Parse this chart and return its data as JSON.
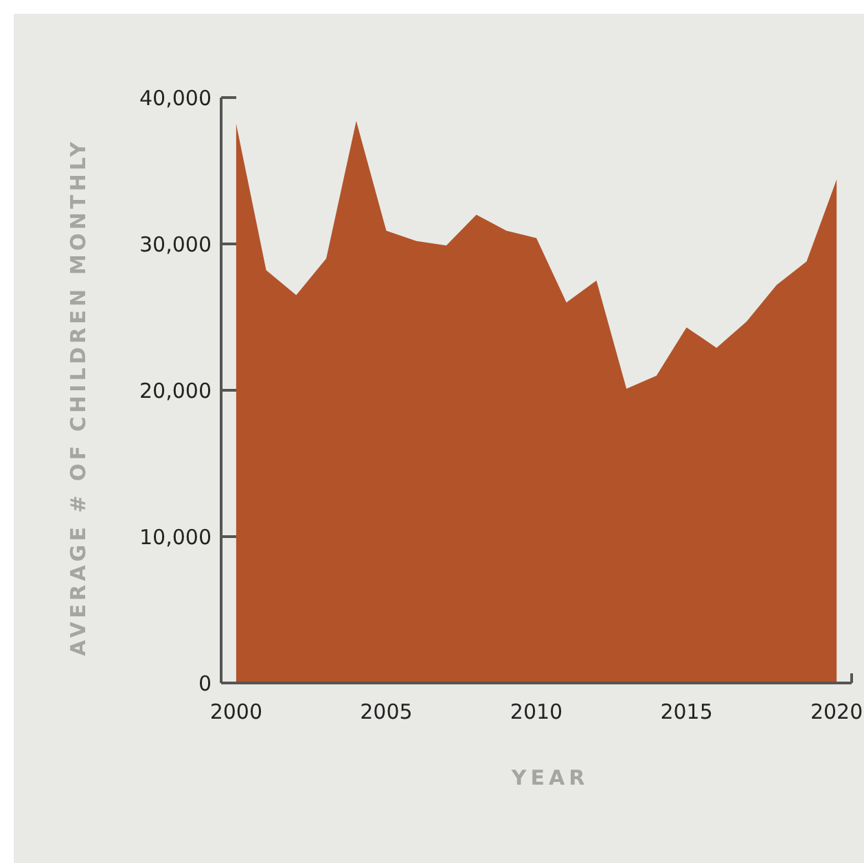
{
  "chart_data": {
    "type": "area",
    "xlabel": "YEAR",
    "ylabel": "AVERAGE # OF CHILDREN MONTHLY",
    "x": [
      2000,
      2001,
      2002,
      2003,
      2004,
      2005,
      2006,
      2007,
      2008,
      2009,
      2010,
      2011,
      2012,
      2013,
      2014,
      2015,
      2016,
      2017,
      2018,
      2019,
      2020
    ],
    "series": [
      {
        "color": "#b3532a",
        "values": [
          38200,
          28200,
          26500,
          29000,
          38400,
          30900,
          30200,
          29900,
          32000,
          30900,
          30400,
          26000,
          27500,
          20100,
          21000,
          24300,
          22900,
          24700,
          27200,
          28800,
          34400
        ]
      }
    ],
    "xlim": [
      1999.5,
      2020.5
    ],
    "xticks": [
      2000,
      2005,
      2010,
      2015,
      2020
    ],
    "ylim": [
      0,
      40000
    ],
    "yticks": [
      {
        "value": 0,
        "label": "0"
      },
      {
        "value": 10000,
        "label": "10,000"
      },
      {
        "value": 20000,
        "label": "20,000"
      },
      {
        "value": 30000,
        "label": "30,000"
      },
      {
        "value": 40000,
        "label": "40,000"
      }
    ],
    "grid": false
  }
}
